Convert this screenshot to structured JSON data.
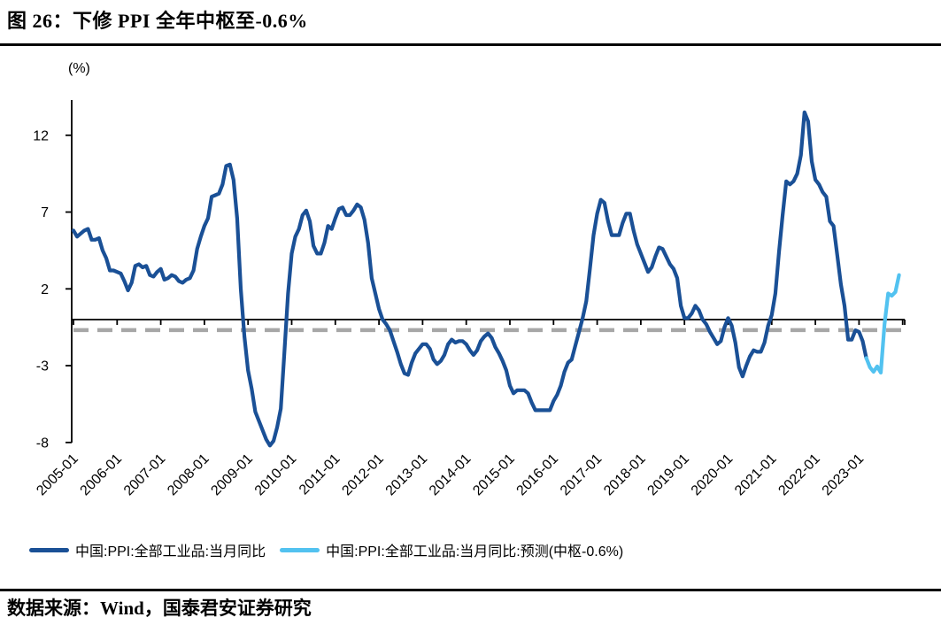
{
  "header": {
    "title": "图 26：下修 PPI 全年中枢至-0.6%"
  },
  "footer": {
    "source": "数据来源：Wind，国泰君安证券研究"
  },
  "legend": {
    "items": [
      {
        "label": "中国:PPI:全部工业品:当月同比"
      },
      {
        "label": "中国:PPI:全部工业品:当月同比:预测(中枢-0.6%)"
      }
    ]
  },
  "chart_data": {
    "type": "line",
    "unit_label": "(%)",
    "x_axis": {
      "tick_labels": [
        "2005-01",
        "2006-01",
        "2007-01",
        "2008-01",
        "2009-01",
        "2010-01",
        "2011-01",
        "2012-01",
        "2013-01",
        "2014-01",
        "2015-01",
        "2016-01",
        "2017-01",
        "2018-01",
        "2019-01",
        "2020-01",
        "2021-01",
        "2022-01",
        "2023-01"
      ],
      "range_start": "2005-01",
      "range_end": "2024-01"
    },
    "y_axis": {
      "ticks": [
        12,
        7,
        2,
        -3,
        -8
      ],
      "min": -8,
      "max": 14
    },
    "center_line": {
      "value": -0.6,
      "style": "dashed",
      "color": "#A7A7A7"
    },
    "series": [
      {
        "name": "中国:PPI:全部工业品:当月同比",
        "color": "#1A5096",
        "start": "2005-01",
        "frequency": "monthly",
        "values": [
          5.8,
          5.4,
          5.6,
          5.8,
          5.9,
          5.2,
          5.2,
          5.3,
          4.5,
          4.0,
          3.2,
          3.2,
          3.1,
          3.0,
          2.5,
          1.9,
          2.4,
          3.5,
          3.6,
          3.4,
          3.5,
          2.9,
          2.8,
          3.1,
          3.3,
          2.6,
          2.7,
          2.9,
          2.8,
          2.5,
          2.4,
          2.6,
          2.7,
          3.2,
          4.6,
          5.4,
          6.1,
          6.6,
          8.0,
          8.1,
          8.2,
          8.8,
          10.0,
          10.1,
          9.1,
          6.6,
          2.0,
          -1.1,
          -3.3,
          -4.5,
          -6.0,
          -6.6,
          -7.2,
          -7.8,
          -8.2,
          -7.9,
          -7.0,
          -5.8,
          -2.1,
          1.7,
          4.3,
          5.4,
          5.9,
          6.8,
          7.1,
          6.4,
          4.8,
          4.3,
          4.3,
          5.0,
          6.1,
          5.9,
          6.6,
          7.2,
          7.3,
          6.8,
          6.8,
          7.1,
          7.5,
          7.3,
          6.5,
          5.0,
          2.7,
          1.7,
          0.7,
          0.0,
          -0.3,
          -0.7,
          -1.4,
          -2.1,
          -2.9,
          -3.5,
          -3.6,
          -2.8,
          -2.2,
          -1.9,
          -1.6,
          -1.6,
          -1.9,
          -2.6,
          -2.9,
          -2.7,
          -2.3,
          -1.6,
          -1.3,
          -1.5,
          -1.4,
          -1.4,
          -1.6,
          -2.0,
          -2.3,
          -2.0,
          -1.4,
          -1.1,
          -0.9,
          -1.2,
          -1.8,
          -2.2,
          -2.7,
          -3.3,
          -4.3,
          -4.8,
          -4.6,
          -4.6,
          -4.6,
          -4.8,
          -5.4,
          -5.9,
          -5.9,
          -5.9,
          -5.9,
          -5.9,
          -5.3,
          -4.9,
          -4.3,
          -3.4,
          -2.8,
          -2.6,
          -1.7,
          -0.8,
          0.1,
          1.2,
          3.3,
          5.5,
          6.9,
          7.8,
          7.6,
          6.4,
          5.5,
          5.5,
          5.5,
          6.3,
          6.9,
          6.9,
          5.8,
          4.9,
          4.3,
          3.7,
          3.1,
          3.4,
          4.1,
          4.7,
          4.6,
          4.1,
          3.6,
          3.3,
          2.7,
          0.9,
          0.1,
          0.1,
          0.4,
          0.9,
          0.6,
          0.0,
          -0.3,
          -0.8,
          -1.2,
          -1.6,
          -1.4,
          -0.5,
          0.1,
          -0.4,
          -1.5,
          -3.1,
          -3.7,
          -3.0,
          -2.4,
          -2.0,
          -2.1,
          -2.1,
          -1.5,
          -0.4,
          0.3,
          1.7,
          4.4,
          6.8,
          9.0,
          8.8,
          9.0,
          9.5,
          10.7,
          13.5,
          12.9,
          10.3,
          9.1,
          8.8,
          8.3,
          8.0,
          6.4,
          6.1,
          4.2,
          2.3,
          0.9,
          -1.3,
          -1.3,
          -0.7,
          -0.8,
          -1.4,
          -2.5
        ]
      },
      {
        "name": "中国:PPI:全部工业品:当月同比:预测(中枢-0.6%)",
        "color": "#52C2F0",
        "start": "2023-03",
        "frequency": "monthly",
        "values": [
          -2.5,
          -3.1,
          -3.4,
          -3.05,
          -3.45,
          -0.3,
          1.7,
          1.55,
          1.8,
          2.9
        ]
      }
    ]
  }
}
